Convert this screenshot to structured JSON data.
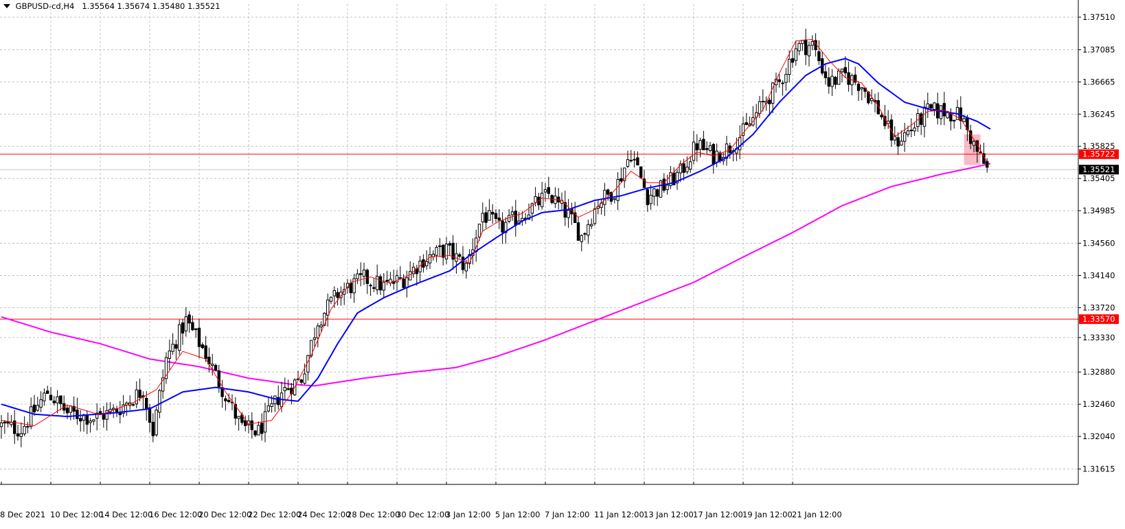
{
  "header": {
    "symbol": "GBPUSD-cd,H4",
    "open": "1.35564",
    "high": "1.35674",
    "low": "1.35480",
    "close": "1.35521"
  },
  "colors": {
    "background": "#ffffff",
    "grid": "#c0c0c0",
    "candle": "#000000",
    "ma_fast": "#ff0000",
    "ma_mid": "#0000ff",
    "ma_slow": "#ff00ff",
    "hline": "#ff0000",
    "hline_label_bg": "#ff0000",
    "price_label_bg": "#000000",
    "highlight": "#f4a6b4"
  },
  "chart_data": {
    "type": "candlestick",
    "grid": true,
    "y_ticks": [
      "1.37510",
      "1.37085",
      "1.36665",
      "1.36245",
      "1.35825",
      "1.35405",
      "1.34985",
      "1.34560",
      "1.34140",
      "1.33720",
      "1.33330",
      "1.32880",
      "1.32460",
      "1.32040",
      "1.31615"
    ],
    "ylim": [
      1.3145,
      1.3768
    ],
    "x_ticks": [
      "8 Dec 2021",
      "10 Dec 12:00",
      "14 Dec 12:00",
      "16 Dec 12:00",
      "20 Dec 12:00",
      "22 Dec 12:00",
      "24 Dec 12:00",
      "28 Dec 12:00",
      "30 Dec 12:00",
      "3 Jan 12:00",
      "5 Jan 12:00",
      "7 Jan 12:00",
      "11 Jan 12:00",
      "13 Jan 12:00",
      "17 Jan 12:00",
      "19 Jan 12:00",
      "21 Jan 12:00"
    ],
    "bars_per_tick": 15,
    "horizontal_lines": [
      {
        "value": 1.35722,
        "label": "1.35722"
      },
      {
        "value": 1.3357,
        "label": "1.33570"
      }
    ],
    "current_price": {
      "value": 1.35521,
      "label": "1.35521"
    },
    "close_path_keys": [
      [
        0,
        1.3218
      ],
      [
        6,
        1.3213
      ],
      [
        14,
        1.3262
      ],
      [
        20,
        1.3235
      ],
      [
        28,
        1.3228
      ],
      [
        35,
        1.3238
      ],
      [
        43,
        1.3265
      ],
      [
        46,
        1.321
      ],
      [
        50,
        1.3305
      ],
      [
        56,
        1.3355
      ],
      [
        62,
        1.3312
      ],
      [
        66,
        1.3275
      ],
      [
        73,
        1.3215
      ],
      [
        78,
        1.321
      ],
      [
        85,
        1.3262
      ],
      [
        91,
        1.328
      ],
      [
        96,
        1.3355
      ],
      [
        102,
        1.339
      ],
      [
        110,
        1.341
      ],
      [
        116,
        1.34
      ],
      [
        122,
        1.341
      ],
      [
        128,
        1.3435
      ],
      [
        135,
        1.3448
      ],
      [
        141,
        1.3425
      ],
      [
        146,
        1.3495
      ],
      [
        151,
        1.3475
      ],
      [
        156,
        1.3488
      ],
      [
        161,
        1.3503
      ],
      [
        166,
        1.352
      ],
      [
        172,
        1.3492
      ],
      [
        176,
        1.3465
      ],
      [
        181,
        1.351
      ],
      [
        186,
        1.3525
      ],
      [
        191,
        1.3575
      ],
      [
        196,
        1.3518
      ],
      [
        201,
        1.353
      ],
      [
        206,
        1.3548
      ],
      [
        211,
        1.3585
      ],
      [
        216,
        1.357
      ],
      [
        221,
        1.3582
      ],
      [
        226,
        1.3605
      ],
      [
        231,
        1.3638
      ],
      [
        236,
        1.3665
      ],
      [
        241,
        1.3712
      ],
      [
        246,
        1.3715
      ],
      [
        251,
        1.3665
      ],
      [
        256,
        1.3675
      ],
      [
        261,
        1.3662
      ],
      [
        266,
        1.363
      ],
      [
        271,
        1.3587
      ],
      [
        276,
        1.3605
      ],
      [
        281,
        1.3628
      ],
      [
        286,
        1.3628
      ],
      [
        291,
        1.3622
      ],
      [
        296,
        1.3575
      ],
      [
        299,
        1.3552
      ]
    ],
    "ma_fast_keys": [
      [
        0,
        1.3225
      ],
      [
        10,
        1.3218
      ],
      [
        20,
        1.3245
      ],
      [
        30,
        1.3232
      ],
      [
        40,
        1.3248
      ],
      [
        47,
        1.3265
      ],
      [
        55,
        1.3315
      ],
      [
        62,
        1.3305
      ],
      [
        68,
        1.3262
      ],
      [
        75,
        1.322
      ],
      [
        82,
        1.3225
      ],
      [
        88,
        1.326
      ],
      [
        94,
        1.331
      ],
      [
        100,
        1.337
      ],
      [
        106,
        1.3405
      ],
      [
        112,
        1.3412
      ],
      [
        118,
        1.3404
      ],
      [
        124,
        1.3415
      ],
      [
        130,
        1.3438
      ],
      [
        136,
        1.344
      ],
      [
        142,
        1.343
      ],
      [
        146,
        1.3472
      ],
      [
        151,
        1.3485
      ],
      [
        158,
        1.3495
      ],
      [
        164,
        1.3515
      ],
      [
        170,
        1.3512
      ],
      [
        175,
        1.349
      ],
      [
        180,
        1.35
      ],
      [
        186,
        1.3525
      ],
      [
        191,
        1.355
      ],
      [
        196,
        1.3535
      ],
      [
        201,
        1.3535
      ],
      [
        206,
        1.3558
      ],
      [
        211,
        1.3575
      ],
      [
        216,
        1.357
      ],
      [
        221,
        1.3578
      ],
      [
        226,
        1.3605
      ],
      [
        231,
        1.363
      ],
      [
        236,
        1.3678
      ],
      [
        241,
        1.372
      ],
      [
        246,
        1.3722
      ],
      [
        251,
        1.3695
      ],
      [
        256,
        1.3672
      ],
      [
        261,
        1.3665
      ],
      [
        266,
        1.3635
      ],
      [
        271,
        1.3595
      ],
      [
        276,
        1.361
      ],
      [
        281,
        1.3628
      ],
      [
        286,
        1.363
      ],
      [
        291,
        1.3618
      ],
      [
        296,
        1.3585
      ],
      [
        299,
        1.3562
      ]
    ],
    "ma_mid_keys": [
      [
        0,
        1.3246
      ],
      [
        10,
        1.3233
      ],
      [
        20,
        1.323
      ],
      [
        35,
        1.3235
      ],
      [
        45,
        1.324
      ],
      [
        55,
        1.3262
      ],
      [
        65,
        1.3268
      ],
      [
        75,
        1.3262
      ],
      [
        83,
        1.3253
      ],
      [
        90,
        1.325
      ],
      [
        96,
        1.328
      ],
      [
        102,
        1.3325
      ],
      [
        108,
        1.3365
      ],
      [
        116,
        1.3385
      ],
      [
        124,
        1.34
      ],
      [
        130,
        1.341
      ],
      [
        136,
        1.342
      ],
      [
        142,
        1.344
      ],
      [
        150,
        1.3463
      ],
      [
        158,
        1.3485
      ],
      [
        164,
        1.3496
      ],
      [
        172,
        1.35
      ],
      [
        180,
        1.3512
      ],
      [
        188,
        1.3518
      ],
      [
        196,
        1.3528
      ],
      [
        204,
        1.3535
      ],
      [
        212,
        1.355
      ],
      [
        220,
        1.3568
      ],
      [
        228,
        1.3598
      ],
      [
        236,
        1.364
      ],
      [
        244,
        1.3675
      ],
      [
        250,
        1.369
      ],
      [
        256,
        1.3697
      ],
      [
        260,
        1.369
      ],
      [
        266,
        1.3665
      ],
      [
        274,
        1.364
      ],
      [
        282,
        1.363
      ],
      [
        290,
        1.3625
      ],
      [
        296,
        1.3615
      ],
      [
        300,
        1.3605
      ]
    ],
    "ma_slow_keys": [
      [
        0,
        1.336
      ],
      [
        15,
        1.334
      ],
      [
        30,
        1.3325
      ],
      [
        45,
        1.3305
      ],
      [
        60,
        1.3295
      ],
      [
        75,
        1.328
      ],
      [
        88,
        1.3272
      ],
      [
        95,
        1.327
      ],
      [
        110,
        1.328
      ],
      [
        125,
        1.3288
      ],
      [
        138,
        1.3294
      ],
      [
        150,
        1.3308
      ],
      [
        165,
        1.333
      ],
      [
        180,
        1.3355
      ],
      [
        195,
        1.338
      ],
      [
        210,
        1.3405
      ],
      [
        225,
        1.3438
      ],
      [
        240,
        1.347
      ],
      [
        255,
        1.3505
      ],
      [
        270,
        1.353
      ],
      [
        285,
        1.3546
      ],
      [
        296,
        1.3556
      ],
      [
        300,
        1.356
      ]
    ]
  }
}
